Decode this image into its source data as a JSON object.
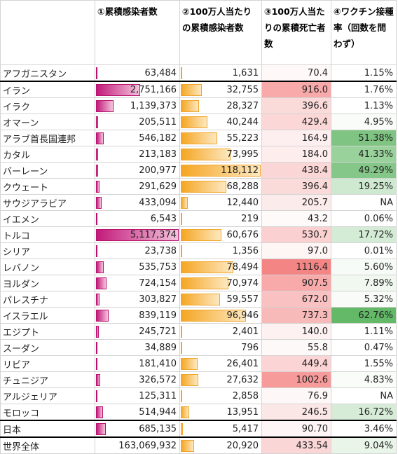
{
  "headers": [
    "",
    "①累積感染者数",
    "②100万人当たりの累積感染者数",
    "③100万人当たりの累積死亡者数",
    "④ワクチン接種率（回数を問わず）"
  ],
  "rows": [
    {
      "name": "アフガニスタン",
      "cases": "63,484",
      "cases_ratio": 0.0124,
      "per_m": "1,631",
      "per_m_ratio": 0.0138,
      "deaths": "70.4",
      "death_color": "#fef8f8",
      "vax": "1.15%",
      "vax_color": "#ffffff"
    },
    {
      "name": "イラン",
      "cases": "2,751,166",
      "cases_ratio": 0.5376,
      "per_m": "32,755",
      "per_m_ratio": 0.2773,
      "deaths": "916.0",
      "death_color": "#f8a9a9",
      "vax": "1.76%",
      "vax_color": "#ffffff"
    },
    {
      "name": "イラク",
      "cases": "1,139,373",
      "cases_ratio": 0.2227,
      "per_m": "28,327",
      "per_m_ratio": 0.2398,
      "deaths": "396.6",
      "death_color": "#fbdada",
      "vax": "1.13%",
      "vax_color": "#ffffff"
    },
    {
      "name": "オマーン",
      "cases": "205,511",
      "cases_ratio": 0.0402,
      "per_m": "40,244",
      "per_m_ratio": 0.3407,
      "deaths": "429.4",
      "death_color": "#fbd7d7",
      "vax": "4.95%",
      "vax_color": "#f9fcf9"
    },
    {
      "name": "アラブ首長国連邦",
      "cases": "546,182",
      "cases_ratio": 0.1067,
      "per_m": "55,223",
      "per_m_ratio": 0.4675,
      "deaths": "164.9",
      "death_color": "#fdefef",
      "vax": "51.38%",
      "vax_color": "#7fc482"
    },
    {
      "name": "カタル",
      "cases": "213,183",
      "cases_ratio": 0.0417,
      "per_m": "73,995",
      "per_m_ratio": 0.6265,
      "deaths": "184.0",
      "death_color": "#fdeded",
      "vax": "41.33%",
      "vax_color": "#9ad29c"
    },
    {
      "name": "バーレーン",
      "cases": "200,977",
      "cases_ratio": 0.0393,
      "per_m": "118,112",
      "per_m_ratio": 1.0,
      "deaths": "438.4",
      "death_color": "#fbd6d6",
      "vax": "49.29%",
      "vax_color": "#85c788"
    },
    {
      "name": "クウェート",
      "cases": "291,629",
      "cases_ratio": 0.057,
      "per_m": "68,288",
      "per_m_ratio": 0.5782,
      "deaths": "396.4",
      "death_color": "#fbdada",
      "vax": "19.25%",
      "vax_color": "#cfe9d0"
    },
    {
      "name": "サウジアラビア",
      "cases": "433,094",
      "cases_ratio": 0.0846,
      "per_m": "12,440",
      "per_m_ratio": 0.1053,
      "deaths": "205.7",
      "death_color": "#fcebeb",
      "vax": "NA",
      "vax_color": "#ffffff"
    },
    {
      "name": "イエメン",
      "cases": "6,543",
      "cases_ratio": 0.0013,
      "per_m": "219",
      "per_m_ratio": 0.0019,
      "deaths": "43.2",
      "death_color": "#fefafa",
      "vax": "0.06%",
      "vax_color": "#ffffff"
    },
    {
      "name": "トルコ",
      "cases": "5,117,374",
      "cases_ratio": 1.0,
      "per_m": "60,676",
      "per_m_ratio": 0.5137,
      "deaths": "530.7",
      "death_color": "#fad0d0",
      "vax": "17.72%",
      "vax_color": "#d4ebd5"
    },
    {
      "name": "シリア",
      "cases": "23,738",
      "cases_ratio": 0.0046,
      "per_m": "1,356",
      "per_m_ratio": 0.0115,
      "deaths": "97.0",
      "death_color": "#fef5f5",
      "vax": "0.01%",
      "vax_color": "#ffffff"
    },
    {
      "name": "レバノン",
      "cases": "535,753",
      "cases_ratio": 0.1047,
      "per_m": "78,494",
      "per_m_ratio": 0.6646,
      "deaths": "1116.4",
      "death_color": "#f48585",
      "vax": "5.60%",
      "vax_color": "#f7fbf7"
    },
    {
      "name": "ヨルダン",
      "cases": "724,154",
      "cases_ratio": 0.1415,
      "per_m": "70,974",
      "per_m_ratio": 0.6009,
      "deaths": "907.5",
      "death_color": "#f8aaaa",
      "vax": "7.89%",
      "vax_color": "#f0f8f0"
    },
    {
      "name": "パレスチナ",
      "cases": "303,827",
      "cases_ratio": 0.0594,
      "per_m": "59,557",
      "per_m_ratio": 0.5042,
      "deaths": "672.0",
      "death_color": "#f9c1c1",
      "vax": "5.32%",
      "vax_color": "#f8fbf8"
    },
    {
      "name": "イスラエル",
      "cases": "839,119",
      "cases_ratio": 0.164,
      "per_m": "96,946",
      "per_m_ratio": 0.8208,
      "deaths": "737.3",
      "death_color": "#f8b9b9",
      "vax": "62.76%",
      "vax_color": "#63b967"
    },
    {
      "name": "エジプト",
      "cases": "245,721",
      "cases_ratio": 0.048,
      "per_m": "2,401",
      "per_m_ratio": 0.0203,
      "deaths": "140.0",
      "death_color": "#fdf1f1",
      "vax": "1.11%",
      "vax_color": "#ffffff"
    },
    {
      "name": "スーダン",
      "cases": "34,889",
      "cases_ratio": 0.0068,
      "per_m": "796",
      "per_m_ratio": 0.0067,
      "deaths": "55.8",
      "death_color": "#fef9f9",
      "vax": "0.47%",
      "vax_color": "#ffffff"
    },
    {
      "name": "リビア",
      "cases": "181,410",
      "cases_ratio": 0.0354,
      "per_m": "26,401",
      "per_m_ratio": 0.2235,
      "deaths": "449.4",
      "death_color": "#fbd5d5",
      "vax": "1.55%",
      "vax_color": "#ffffff"
    },
    {
      "name": "チュニジア",
      "cases": "326,572",
      "cases_ratio": 0.0638,
      "per_m": "27,632",
      "per_m_ratio": 0.2339,
      "deaths": "1002.6",
      "death_color": "#f69a9a",
      "vax": "4.83%",
      "vax_color": "#f9fcf9"
    },
    {
      "name": "アルジェリア",
      "cases": "125,311",
      "cases_ratio": 0.0245,
      "per_m": "2,858",
      "per_m_ratio": 0.0242,
      "deaths": "76.9",
      "death_color": "#fef7f7",
      "vax": "NA",
      "vax_color": "#ffffff"
    },
    {
      "name": "モロッコ",
      "cases": "514,944",
      "cases_ratio": 0.1006,
      "per_m": "13,951",
      "per_m_ratio": 0.1181,
      "deaths": "246.5",
      "death_color": "#fce7e7",
      "vax": "16.72%",
      "vax_color": "#d6ecd7"
    },
    {
      "name": "日本",
      "cases": "685,135",
      "cases_ratio": 0.1339,
      "per_m": "5,417",
      "per_m_ratio": 0.0459,
      "deaths": "90.70",
      "death_color": "#fef6f6",
      "vax": "3.46%",
      "vax_color": "#ffffff"
    },
    {
      "name": "世界全体",
      "cases": "163,069,932",
      "cases_ratio": 0.0,
      "per_m": "20,920",
      "per_m_ratio": 0.1771,
      "deaths": "433.54",
      "death_color": "#fbd6d6",
      "vax": "9.04%",
      "vax_color": "#eaf5ea"
    }
  ]
}
